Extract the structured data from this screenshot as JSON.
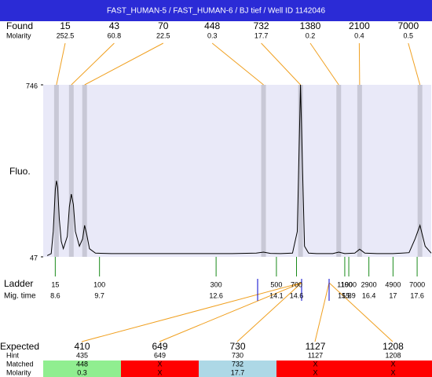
{
  "chart_data": {
    "type": "line",
    "title": "FAST_HUMAN-5 / FAST_HUMAN-6 / BJ tief / Well ID 1142046",
    "ylabel": "Fluo.",
    "xlim": [
      8.3,
      17.95
    ],
    "ylim": [
      47,
      746
    ],
    "yticks": [
      47,
      746
    ],
    "color": "#000000",
    "x": [
      8.4,
      8.5,
      8.55,
      8.6,
      8.63,
      8.66,
      8.7,
      8.75,
      8.8,
      8.9,
      8.95,
      9.0,
      9.05,
      9.1,
      9.2,
      9.28,
      9.33,
      9.38,
      9.45,
      9.6,
      10,
      11,
      12,
      13,
      13.6,
      13.78,
      13.95,
      14.2,
      14.5,
      14.62,
      14.7,
      14.75,
      14.8,
      14.9,
      15.1,
      15.5,
      15.65,
      15.8,
      16.05,
      16.17,
      16.3,
      16.6,
      17,
      17.4,
      17.55,
      17.67,
      17.8,
      17.95
    ],
    "values": [
      52,
      60,
      150,
      320,
      356,
      330,
      200,
      110,
      80,
      130,
      250,
      302,
      260,
      150,
      90,
      120,
      175,
      140,
      80,
      62,
      60,
      60,
      60,
      60,
      62,
      66,
      61,
      60,
      62,
      150,
      746,
      400,
      90,
      62,
      60,
      60,
      66,
      60,
      62,
      78,
      62,
      60,
      60,
      64,
      120,
      175,
      90,
      62
    ],
    "found": {
      "label": "Found",
      "sublabel": "Molarity",
      "sizes": [
        15,
        43,
        70,
        448,
        732,
        1380,
        2100,
        7000
      ],
      "molarities": [
        252.5,
        60.8,
        22.5,
        0.3,
        17.7,
        0.2,
        0.4,
        0.5
      ],
      "times": [
        8.63,
        9.0,
        9.33,
        13.78,
        14.7,
        15.65,
        16.17,
        17.67
      ]
    },
    "ladder": {
      "label": "Ladder",
      "sublabel": "Mig. time",
      "sizes": [
        15,
        100,
        300,
        500,
        700,
        1100,
        1900,
        2900,
        4900,
        7000
      ],
      "times": [
        8.6,
        9.7,
        12.6,
        14.1,
        14.6,
        15.8,
        15.9,
        16.4,
        17,
        17.6
      ]
    },
    "expected": {
      "labels": [
        "Expected",
        "Hint",
        "Matched",
        "Molarity"
      ],
      "columns": [
        {
          "expected": 410,
          "hint": 435,
          "matched": 448,
          "molarity": 0.3,
          "color": "#90ee90"
        },
        {
          "expected": 649,
          "hint": 649,
          "matched": "X",
          "molarity": "X",
          "color": "#ff0000"
        },
        {
          "expected": 730,
          "hint": 730,
          "matched": 732,
          "molarity": 17.7,
          "color": "#add8e6"
        },
        {
          "expected": 1127,
          "hint": 1127,
          "matched": "X",
          "molarity": "X",
          "color": "#ff0000"
        },
        {
          "expected": 1208,
          "hint": 1208,
          "matched": "X",
          "molarity": "X",
          "color": "#ff0000"
        }
      ]
    }
  }
}
